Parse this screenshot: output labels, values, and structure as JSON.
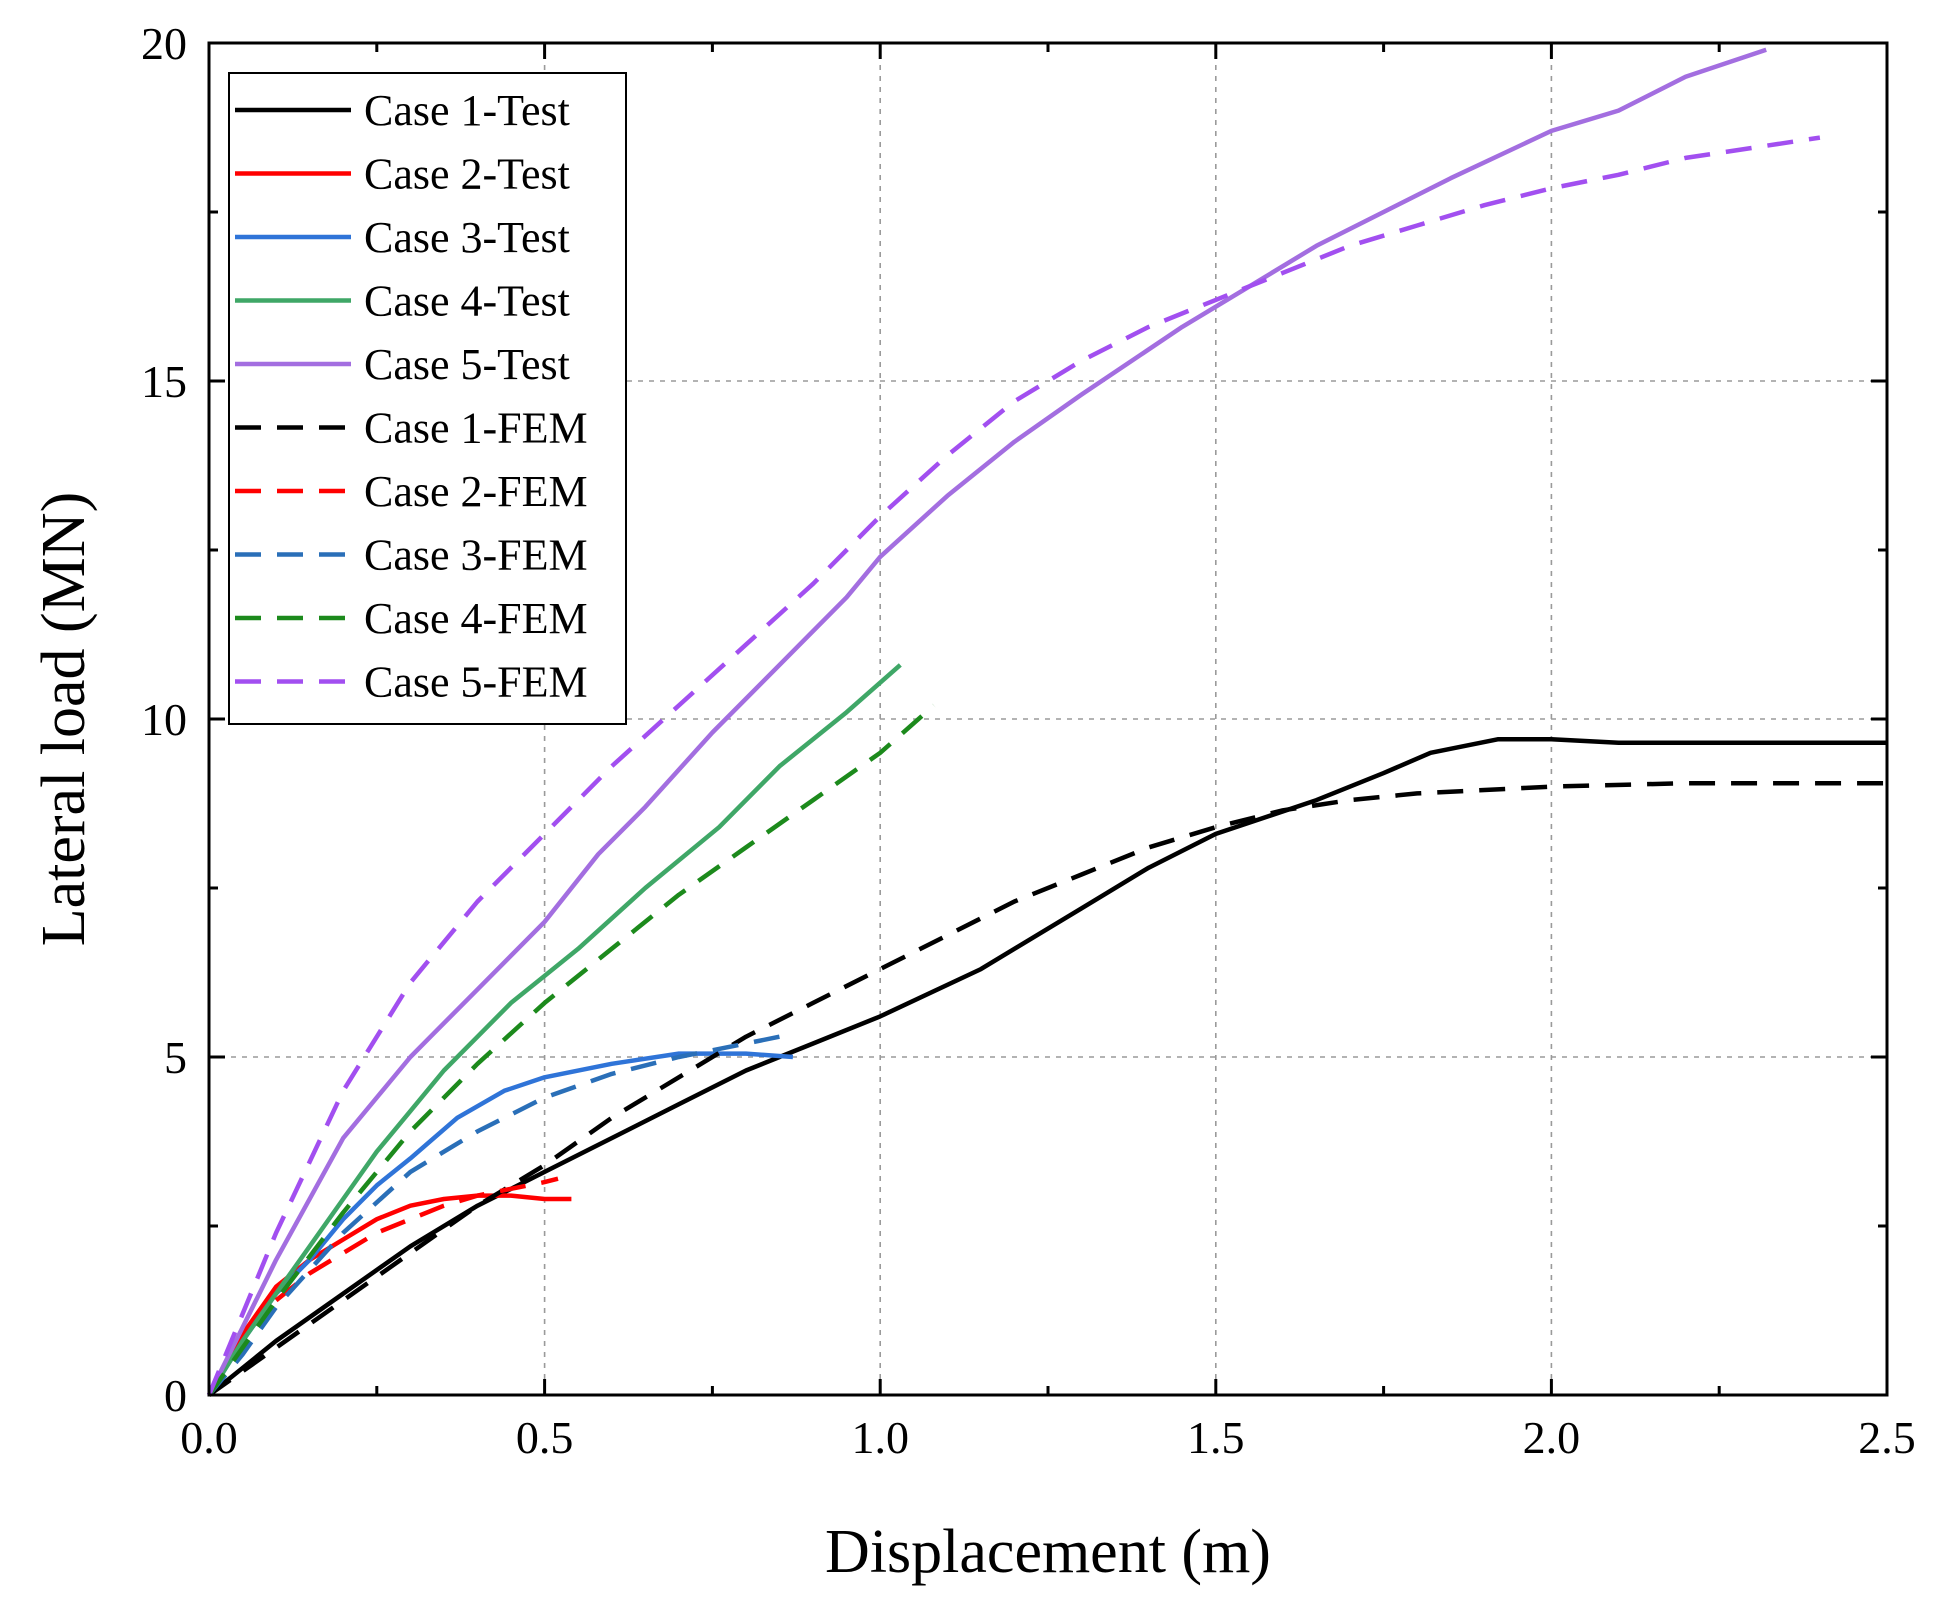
{
  "chart_data": {
    "type": "line",
    "title": "",
    "xlabel": "Displacement (m)",
    "ylabel": "Lateral load (MN)",
    "xlim": [
      0,
      2.5
    ],
    "ylim": [
      0,
      20
    ],
    "xticks": [
      0.0,
      0.5,
      1.0,
      1.5,
      2.0,
      2.5
    ],
    "xtick_labels": [
      "0.0",
      "0.5",
      "1.0",
      "1.5",
      "2.0",
      "2.5"
    ],
    "yticks": [
      0,
      5,
      10,
      15,
      20
    ],
    "ytick_labels": [
      "0",
      "5",
      "10",
      "15",
      "20"
    ],
    "grid": true,
    "legend_position": "top-left",
    "series": [
      {
        "name": "Case 1-Test",
        "color": "#000000",
        "dash": "solid",
        "x": [
          0,
          0.05,
          0.1,
          0.2,
          0.3,
          0.4,
          0.5,
          0.6,
          0.7,
          0.8,
          0.9,
          1.0,
          1.15,
          1.3,
          1.4,
          1.5,
          1.65,
          1.75,
          1.82,
          1.92,
          2.0,
          2.1,
          2.5
        ],
        "y": [
          0,
          0.4,
          0.8,
          1.5,
          2.2,
          2.8,
          3.3,
          3.8,
          4.3,
          4.8,
          5.2,
          5.6,
          6.3,
          7.2,
          7.8,
          8.3,
          8.8,
          9.2,
          9.5,
          9.7,
          9.7,
          9.65,
          9.65
        ]
      },
      {
        "name": "Case 2-Test",
        "color": "#ff0000",
        "dash": "solid",
        "x": [
          0,
          0.05,
          0.1,
          0.15,
          0.2,
          0.25,
          0.3,
          0.35,
          0.4,
          0.45,
          0.5,
          0.54
        ],
        "y": [
          0,
          0.9,
          1.6,
          2.0,
          2.3,
          2.6,
          2.8,
          2.9,
          2.95,
          2.95,
          2.9,
          2.9
        ]
      },
      {
        "name": "Case 3-Test",
        "color": "#2f74d8",
        "dash": "solid",
        "x": [
          0,
          0.05,
          0.1,
          0.15,
          0.2,
          0.25,
          0.3,
          0.37,
          0.44,
          0.5,
          0.6,
          0.7,
          0.8,
          0.87
        ],
        "y": [
          0,
          0.8,
          1.5,
          2.0,
          2.6,
          3.1,
          3.5,
          4.1,
          4.5,
          4.7,
          4.9,
          5.05,
          5.05,
          5.0
        ]
      },
      {
        "name": "Case 4-Test",
        "color": "#3fa767",
        "dash": "solid",
        "x": [
          0,
          0.05,
          0.1,
          0.15,
          0.2,
          0.25,
          0.3,
          0.35,
          0.4,
          0.45,
          0.5,
          0.55,
          0.65,
          0.76,
          0.85,
          0.95,
          1.03
        ],
        "y": [
          0,
          0.8,
          1.5,
          2.2,
          2.9,
          3.6,
          4.2,
          4.8,
          5.3,
          5.8,
          6.2,
          6.6,
          7.5,
          8.4,
          9.3,
          10.1,
          10.8
        ]
      },
      {
        "name": "Case 5-Test",
        "color": "#a36ee0",
        "dash": "solid",
        "x": [
          0,
          0.05,
          0.1,
          0.2,
          0.3,
          0.33,
          0.4,
          0.5,
          0.58,
          0.65,
          0.75,
          0.85,
          0.95,
          1.0,
          1.1,
          1.2,
          1.3,
          1.45,
          1.55,
          1.65,
          1.75,
          1.85,
          2.0,
          2.1,
          2.2,
          2.32
        ],
        "y": [
          0,
          1.0,
          2.0,
          3.8,
          5.0,
          5.3,
          6.0,
          7.0,
          8.0,
          8.7,
          9.8,
          10.8,
          11.8,
          12.4,
          13.3,
          14.1,
          14.8,
          15.8,
          16.4,
          17.0,
          17.5,
          18.0,
          18.7,
          19.0,
          19.5,
          19.9
        ]
      },
      {
        "name": "Case 1-FEM",
        "color": "#000000",
        "dash": "dashed",
        "x": [
          0,
          0.1,
          0.2,
          0.3,
          0.4,
          0.5,
          0.6,
          0.7,
          0.8,
          0.9,
          1.0,
          1.1,
          1.2,
          1.3,
          1.4,
          1.5,
          1.6,
          1.7,
          1.8,
          2.0,
          2.2,
          2.5
        ],
        "y": [
          0,
          0.7,
          1.4,
          2.1,
          2.8,
          3.4,
          4.1,
          4.7,
          5.3,
          5.8,
          6.3,
          6.8,
          7.3,
          7.7,
          8.1,
          8.4,
          8.65,
          8.8,
          8.9,
          9.0,
          9.05,
          9.05
        ]
      },
      {
        "name": "Case 2-FEM",
        "color": "#ff0000",
        "dash": "dashed",
        "x": [
          0.1,
          0.15,
          0.2,
          0.25,
          0.3,
          0.35,
          0.4,
          0.45,
          0.5,
          0.52
        ],
        "y": [
          1.4,
          1.8,
          2.1,
          2.4,
          2.6,
          2.8,
          2.95,
          3.05,
          3.15,
          3.2
        ]
      },
      {
        "name": "Case 3-FEM",
        "color": "#2a6fb8",
        "dash": "dashed",
        "x": [
          0,
          0.05,
          0.1,
          0.2,
          0.3,
          0.4,
          0.5,
          0.6,
          0.7,
          0.8,
          0.85
        ],
        "y": [
          0,
          0.6,
          1.3,
          2.4,
          3.3,
          3.9,
          4.4,
          4.75,
          5.0,
          5.2,
          5.3
        ]
      },
      {
        "name": "Case 4-FEM",
        "color": "#1c8a1c",
        "dash": "dashed",
        "x": [
          0,
          0.05,
          0.1,
          0.2,
          0.3,
          0.4,
          0.5,
          0.6,
          0.7,
          0.8,
          0.9,
          1.0,
          1.08
        ],
        "y": [
          0,
          0.7,
          1.4,
          2.7,
          3.9,
          4.9,
          5.8,
          6.6,
          7.4,
          8.1,
          8.8,
          9.5,
          10.2
        ]
      },
      {
        "name": "Case 5-FEM",
        "color": "#a24ff0",
        "dash": "dashed",
        "x": [
          0,
          0.05,
          0.1,
          0.2,
          0.3,
          0.4,
          0.5,
          0.6,
          0.7,
          0.8,
          0.9,
          1.0,
          1.1,
          1.2,
          1.3,
          1.4,
          1.5,
          1.6,
          1.7,
          1.8,
          1.9,
          2.0,
          2.1,
          2.2,
          2.3,
          2.4
        ],
        "y": [
          0,
          1.2,
          2.4,
          4.5,
          6.1,
          7.3,
          8.3,
          9.3,
          10.2,
          11.1,
          12.0,
          13.0,
          13.9,
          14.7,
          15.3,
          15.8,
          16.2,
          16.6,
          17.0,
          17.3,
          17.6,
          17.85,
          18.05,
          18.3,
          18.45,
          18.6
        ]
      }
    ]
  }
}
